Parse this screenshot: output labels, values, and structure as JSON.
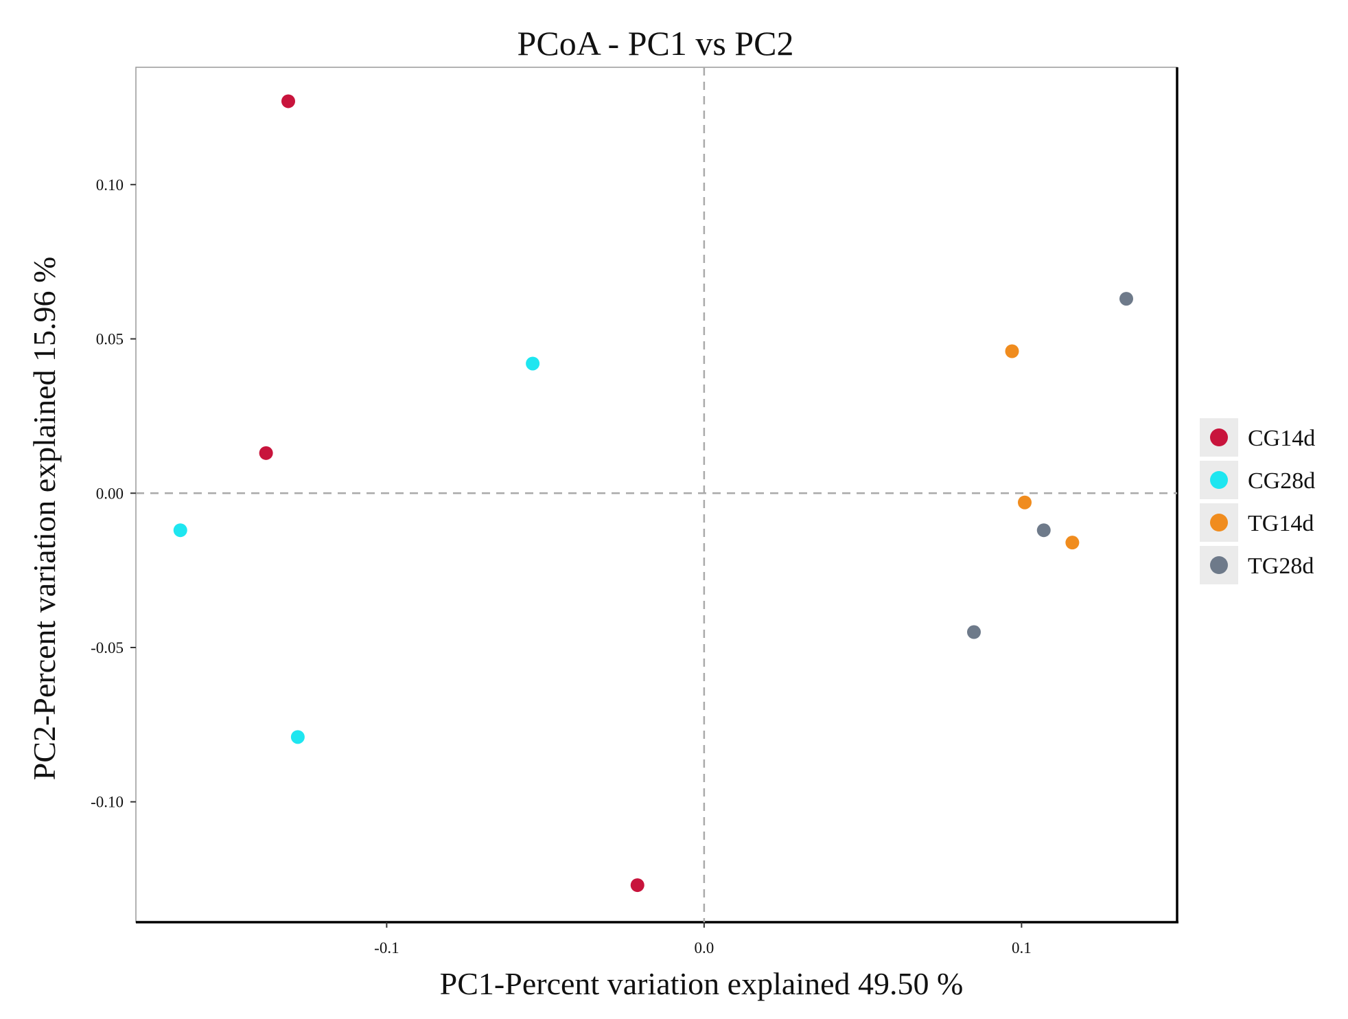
{
  "chart_data": {
    "type": "scatter",
    "title": "PCoA - PC1 vs PC2",
    "xlabel": "PC1-Percent variation explained 49.50 %",
    "ylabel": "PC2-Percent variation explained 15.96 %",
    "xlim": [
      -0.179,
      0.149
    ],
    "ylim": [
      -0.139,
      0.138
    ],
    "x_ticks": [
      -0.1,
      0.0,
      0.1
    ],
    "x_tick_labels": [
      "-0.1",
      "0.0",
      "0.1"
    ],
    "y_ticks": [
      -0.1,
      -0.05,
      0.0,
      0.05,
      0.1
    ],
    "y_tick_labels": [
      "-0.10",
      "-0.05",
      "0.00",
      "0.05",
      "0.10"
    ],
    "reference_lines": {
      "x": 0,
      "y": 0
    },
    "grid": false,
    "legend_position": "right",
    "series": [
      {
        "name": "CG14d",
        "color": "#c8143c",
        "points": [
          {
            "x": -0.131,
            "y": 0.127
          },
          {
            "x": -0.138,
            "y": 0.013
          },
          {
            "x": -0.021,
            "y": -0.127
          }
        ]
      },
      {
        "name": "CG28d",
        "color": "#1ee6f0",
        "points": [
          {
            "x": -0.054,
            "y": 0.042
          },
          {
            "x": -0.165,
            "y": -0.012
          },
          {
            "x": -0.128,
            "y": -0.079
          }
        ]
      },
      {
        "name": "TG14d",
        "color": "#f08c1e",
        "points": [
          {
            "x": 0.097,
            "y": 0.046
          },
          {
            "x": 0.101,
            "y": -0.003
          },
          {
            "x": 0.116,
            "y": -0.016
          }
        ]
      },
      {
        "name": "TG28d",
        "color": "#6e7a8a",
        "points": [
          {
            "x": 0.133,
            "y": 0.063
          },
          {
            "x": 0.107,
            "y": -0.012
          },
          {
            "x": 0.085,
            "y": -0.045
          }
        ]
      }
    ]
  }
}
